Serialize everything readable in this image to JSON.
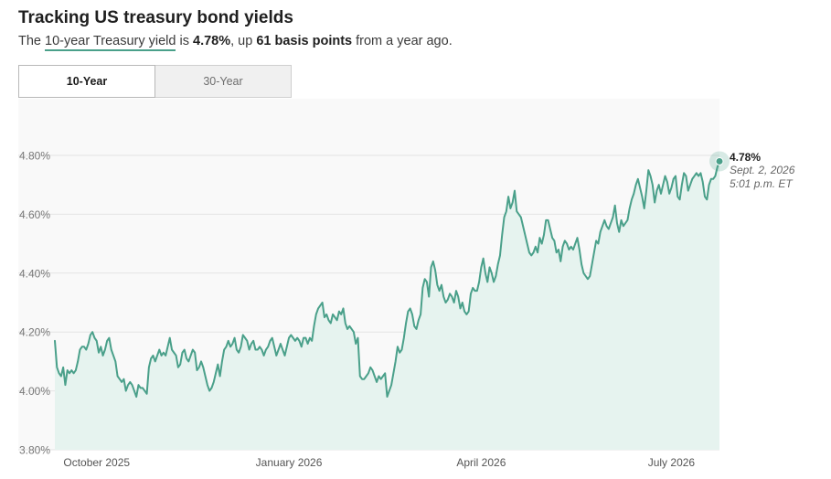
{
  "header": {
    "title": "Tracking US treasury bond yields",
    "subtitle_pre": "The ",
    "subtitle_link": "10-year Treasury yield",
    "subtitle_mid1": " is ",
    "subtitle_value": "4.78%",
    "subtitle_mid2": ", up ",
    "subtitle_change": "61 basis points",
    "subtitle_post": " from a year ago."
  },
  "tabs": [
    {
      "label": "10-Year",
      "active": true
    },
    {
      "label": "30-Year",
      "active": false
    }
  ],
  "colors": {
    "line": "#4aa08a",
    "area": "#e6f3ef",
    "plot_bg": "#f9f9f9",
    "grid": "#e4e4e4"
  },
  "chart_data": {
    "type": "line",
    "title": "Tracking US treasury bond yields",
    "series": [
      {
        "values": [
          4.17,
          4.08,
          4.06,
          4.05,
          4.08,
          4.02,
          4.07,
          4.06,
          4.07,
          4.06,
          4.07,
          4.1,
          4.14,
          4.15,
          4.15,
          4.14,
          4.16,
          4.19,
          4.2,
          4.18,
          4.17,
          4.13,
          4.15,
          4.12,
          4.14,
          4.17,
          4.18,
          4.14,
          4.12,
          4.1,
          4.05,
          4.04,
          4.03,
          4.04,
          4.0,
          4.02,
          4.03,
          4.02,
          4.0,
          3.98,
          4.02,
          4.01,
          4.01,
          4.0,
          3.99,
          4.08,
          4.11,
          4.12,
          4.1,
          4.12,
          4.14,
          4.12,
          4.13,
          4.12,
          4.15,
          4.18,
          4.14,
          4.13,
          4.12,
          4.08,
          4.09,
          4.13,
          4.14,
          4.11,
          4.1,
          4.12,
          4.14,
          4.13,
          4.07,
          4.08,
          4.1,
          4.08,
          4.05,
          4.02,
          4.0,
          4.01,
          4.03,
          4.06,
          4.09,
          4.05,
          4.1,
          4.14,
          4.15,
          4.17,
          4.15,
          4.16,
          4.18,
          4.14,
          4.13,
          4.15,
          4.19,
          4.18,
          4.17,
          4.14,
          4.16,
          4.17,
          4.14,
          4.14,
          4.15,
          4.14,
          4.12,
          4.14,
          4.15,
          4.17,
          4.18,
          4.15,
          4.12,
          4.14,
          4.16,
          4.14,
          4.12,
          4.15,
          4.18,
          4.19,
          4.18,
          4.17,
          4.18,
          4.17,
          4.15,
          4.18,
          4.18,
          4.16,
          4.18,
          4.17,
          4.22,
          4.26,
          4.28,
          4.29,
          4.3,
          4.25,
          4.26,
          4.24,
          4.23,
          4.26,
          4.25,
          4.24,
          4.27,
          4.26,
          4.28,
          4.23,
          4.21,
          4.22,
          4.21,
          4.2,
          4.16,
          4.18,
          4.05,
          4.04,
          4.04,
          4.05,
          4.06,
          4.08,
          4.07,
          4.05,
          4.03,
          4.05,
          4.04,
          4.05,
          4.06,
          3.98,
          4.0,
          4.02,
          4.06,
          4.1,
          4.15,
          4.13,
          4.14,
          4.18,
          4.23,
          4.27,
          4.28,
          4.26,
          4.22,
          4.21,
          4.24,
          4.26,
          4.35,
          4.38,
          4.37,
          4.32,
          4.42,
          4.44,
          4.41,
          4.36,
          4.34,
          4.36,
          4.32,
          4.3,
          4.31,
          4.33,
          4.32,
          4.3,
          4.34,
          4.32,
          4.28,
          4.3,
          4.27,
          4.26,
          4.27,
          4.33,
          4.35,
          4.34,
          4.34,
          4.37,
          4.42,
          4.45,
          4.4,
          4.37,
          4.42,
          4.4,
          4.37,
          4.39,
          4.43,
          4.46,
          4.53,
          4.59,
          4.61,
          4.66,
          4.62,
          4.64,
          4.68,
          4.61,
          4.6,
          4.59,
          4.56,
          4.53,
          4.5,
          4.47,
          4.46,
          4.47,
          4.49,
          4.47,
          4.52,
          4.5,
          4.53,
          4.58,
          4.58,
          4.55,
          4.52,
          4.51,
          4.47,
          4.48,
          4.44,
          4.49,
          4.51,
          4.5,
          4.48,
          4.49,
          4.48,
          4.5,
          4.52,
          4.48,
          4.43,
          4.4,
          4.39,
          4.38,
          4.39,
          4.43,
          4.47,
          4.51,
          4.5,
          4.54,
          4.56,
          4.58,
          4.56,
          4.55,
          4.57,
          4.59,
          4.63,
          4.57,
          4.54,
          4.58,
          4.56,
          4.57,
          4.58,
          4.62,
          4.65,
          4.67,
          4.7,
          4.72,
          4.69,
          4.66,
          4.62,
          4.68,
          4.75,
          4.73,
          4.7,
          4.64,
          4.68,
          4.7,
          4.67,
          4.7,
          4.73,
          4.71,
          4.67,
          4.69,
          4.72,
          4.73,
          4.66,
          4.65,
          4.7,
          4.74,
          4.73,
          4.68,
          4.7,
          4.72,
          4.73,
          4.74,
          4.73,
          4.74,
          4.71,
          4.66,
          4.65,
          4.7,
          4.72,
          4.72,
          4.73,
          4.76,
          4.78
        ]
      }
    ],
    "ylim": [
      3.8,
      4.8
    ],
    "y_ticks": [
      3.8,
      4.0,
      4.2,
      4.4,
      4.6,
      4.8
    ],
    "y_tick_labels": [
      "3.80%",
      "4.00%",
      "4.20%",
      "4.40%",
      "4.60%",
      "4.80%"
    ],
    "x_ticks": [
      {
        "index": 20,
        "label": "October 2025"
      },
      {
        "index": 112,
        "label": "January 2026"
      },
      {
        "index": 204,
        "label": "April 2026"
      },
      {
        "index": 295,
        "label": "July 2026"
      }
    ],
    "grid": true,
    "annotation": {
      "value_label": "4.78%",
      "date_label": "Sept. 2, 2026",
      "time_label": "5:01 p.m. ET"
    }
  }
}
